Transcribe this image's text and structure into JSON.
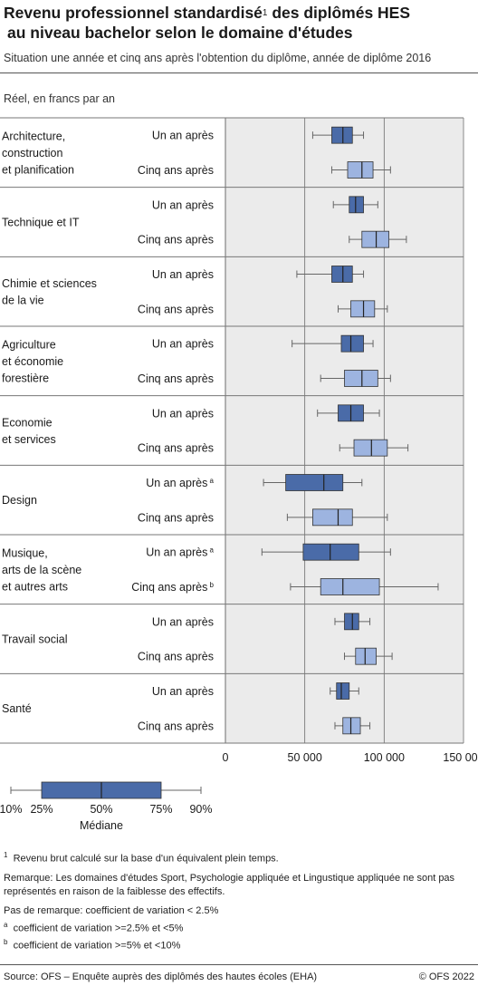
{
  "header": {
    "title_part1": "Revenu professionnel standardisé",
    "title_sup": "1",
    "title_part2": " des diplômés HES",
    "title_line2": "au niveau bachelor selon le domaine d'études",
    "subtitle": "Situation une année et cinq ans après l'obtention du diplôme, année de diplôme 2016"
  },
  "colors": {
    "one_year": "#4a6ba8",
    "five_years": "#9db4e0",
    "plot_bg": "#ebebeb",
    "grid": "#6e6e6e"
  },
  "chart_data": {
    "type": "boxplot",
    "unit_label": "Réel, en francs par an",
    "orientation": "horizontal",
    "xlim": [
      0,
      150000
    ],
    "xticks": [
      0,
      50000,
      100000,
      150000
    ],
    "xtick_labels": [
      "0",
      "50 000",
      "100 000",
      "150 000"
    ],
    "grid": true,
    "groups": [
      {
        "name": "Architecture, construction et planification",
        "name_lines": [
          "Architecture,",
          "construction",
          "et planification"
        ],
        "rows": [
          {
            "label": "Un an après",
            "sup": "",
            "p10": 55000,
            "p25": 67000,
            "p50": 74000,
            "p75": 80000,
            "p90": 87000
          },
          {
            "label": "Cinq ans après",
            "sup": "",
            "p10": 67000,
            "p25": 77000,
            "p50": 86000,
            "p75": 93000,
            "p90": 104000
          }
        ]
      },
      {
        "name": "Technique et IT",
        "name_lines": [
          "Technique et IT"
        ],
        "rows": [
          {
            "label": "Un an après",
            "sup": "",
            "p10": 68000,
            "p25": 78000,
            "p50": 82000,
            "p75": 87000,
            "p90": 96000
          },
          {
            "label": "Cinq ans après",
            "sup": "",
            "p10": 78000,
            "p25": 86000,
            "p50": 95000,
            "p75": 103000,
            "p90": 114000
          }
        ]
      },
      {
        "name": "Chimie et sciences de la vie",
        "name_lines": [
          "Chimie et sciences",
          "de la vie"
        ],
        "rows": [
          {
            "label": "Un an après",
            "sup": "",
            "p10": 45000,
            "p25": 67000,
            "p50": 74000,
            "p75": 80000,
            "p90": 87000
          },
          {
            "label": "Cinq ans après",
            "sup": "",
            "p10": 71000,
            "p25": 79000,
            "p50": 87000,
            "p75": 94000,
            "p90": 102000
          }
        ]
      },
      {
        "name": "Agriculture et économie forestière",
        "name_lines": [
          "Agriculture",
          "et économie",
          "forestière"
        ],
        "rows": [
          {
            "label": "Un an après",
            "sup": "",
            "p10": 42000,
            "p25": 73000,
            "p50": 79000,
            "p75": 87000,
            "p90": 93000
          },
          {
            "label": "Cinq ans après",
            "sup": "",
            "p10": 60000,
            "p25": 75000,
            "p50": 86000,
            "p75": 96000,
            "p90": 104000
          }
        ]
      },
      {
        "name": "Economie et services",
        "name_lines": [
          "Economie",
          "et services"
        ],
        "rows": [
          {
            "label": "Un an après",
            "sup": "",
            "p10": 58000,
            "p25": 71000,
            "p50": 79000,
            "p75": 87000,
            "p90": 97000
          },
          {
            "label": "Cinq ans après",
            "sup": "",
            "p10": 72000,
            "p25": 81000,
            "p50": 92000,
            "p75": 102000,
            "p90": 115000
          }
        ]
      },
      {
        "name": "Design",
        "name_lines": [
          "Design"
        ],
        "rows": [
          {
            "label": "Un an après",
            "sup": "a",
            "p10": 24000,
            "p25": 38000,
            "p50": 62000,
            "p75": 74000,
            "p90": 86000
          },
          {
            "label": "Cinq ans après",
            "sup": "",
            "p10": 39000,
            "p25": 55000,
            "p50": 71000,
            "p75": 80000,
            "p90": 102000
          }
        ]
      },
      {
        "name": "Musique, arts de la scène et autres arts",
        "name_lines": [
          "Musique,",
          "arts de la scène",
          "et autres arts"
        ],
        "rows": [
          {
            "label": "Un an après",
            "sup": "a",
            "p10": 23000,
            "p25": 49000,
            "p50": 66000,
            "p75": 84000,
            "p90": 104000
          },
          {
            "label": "Cinq ans après",
            "sup": "b",
            "p10": 41000,
            "p25": 60000,
            "p50": 74000,
            "p75": 97000,
            "p90": 134000
          }
        ]
      },
      {
        "name": "Travail social",
        "name_lines": [
          "Travail social"
        ],
        "rows": [
          {
            "label": "Un an après",
            "sup": "",
            "p10": 69000,
            "p25": 75000,
            "p50": 80000,
            "p75": 84000,
            "p90": 91000
          },
          {
            "label": "Cinq ans après",
            "sup": "",
            "p10": 75000,
            "p25": 82000,
            "p50": 88000,
            "p75": 95000,
            "p90": 105000
          }
        ]
      },
      {
        "name": "Santé",
        "name_lines": [
          "Santé"
        ],
        "rows": [
          {
            "label": "Un an après",
            "sup": "",
            "p10": 66000,
            "p25": 70000,
            "p50": 73000,
            "p75": 78000,
            "p90": 84000
          },
          {
            "label": "Cinq ans après",
            "sup": "",
            "p10": 69000,
            "p25": 74000,
            "p50": 79000,
            "p75": 85000,
            "p90": 91000
          }
        ]
      }
    ]
  },
  "legend": {
    "labels": [
      "10%",
      "25%",
      "50%",
      "75%",
      "90%"
    ],
    "median_label": "Médiane"
  },
  "footnotes": {
    "note1_sup": "1",
    "note1": "Revenu brut calculé sur la base d'un équivalent plein temps.",
    "remark": "Remarque: Les domaines d'études Sport, Psychologie appliquée et Lingustique appliquée ne sont pas représentés en raison de la faiblesse des effectifs.",
    "no_mark": "Pas de remarque: coefficient de variation < 2.5%",
    "a_sup": "a",
    "a_text": "coefficient de variation >=2.5% et <5%",
    "b_sup": "b",
    "b_text": "coefficient de variation >=5% et <10%"
  },
  "source": "Source: OFS – Enquête auprès des diplômés des hautes écoles (EHA)",
  "copyright": "© OFS 2022"
}
